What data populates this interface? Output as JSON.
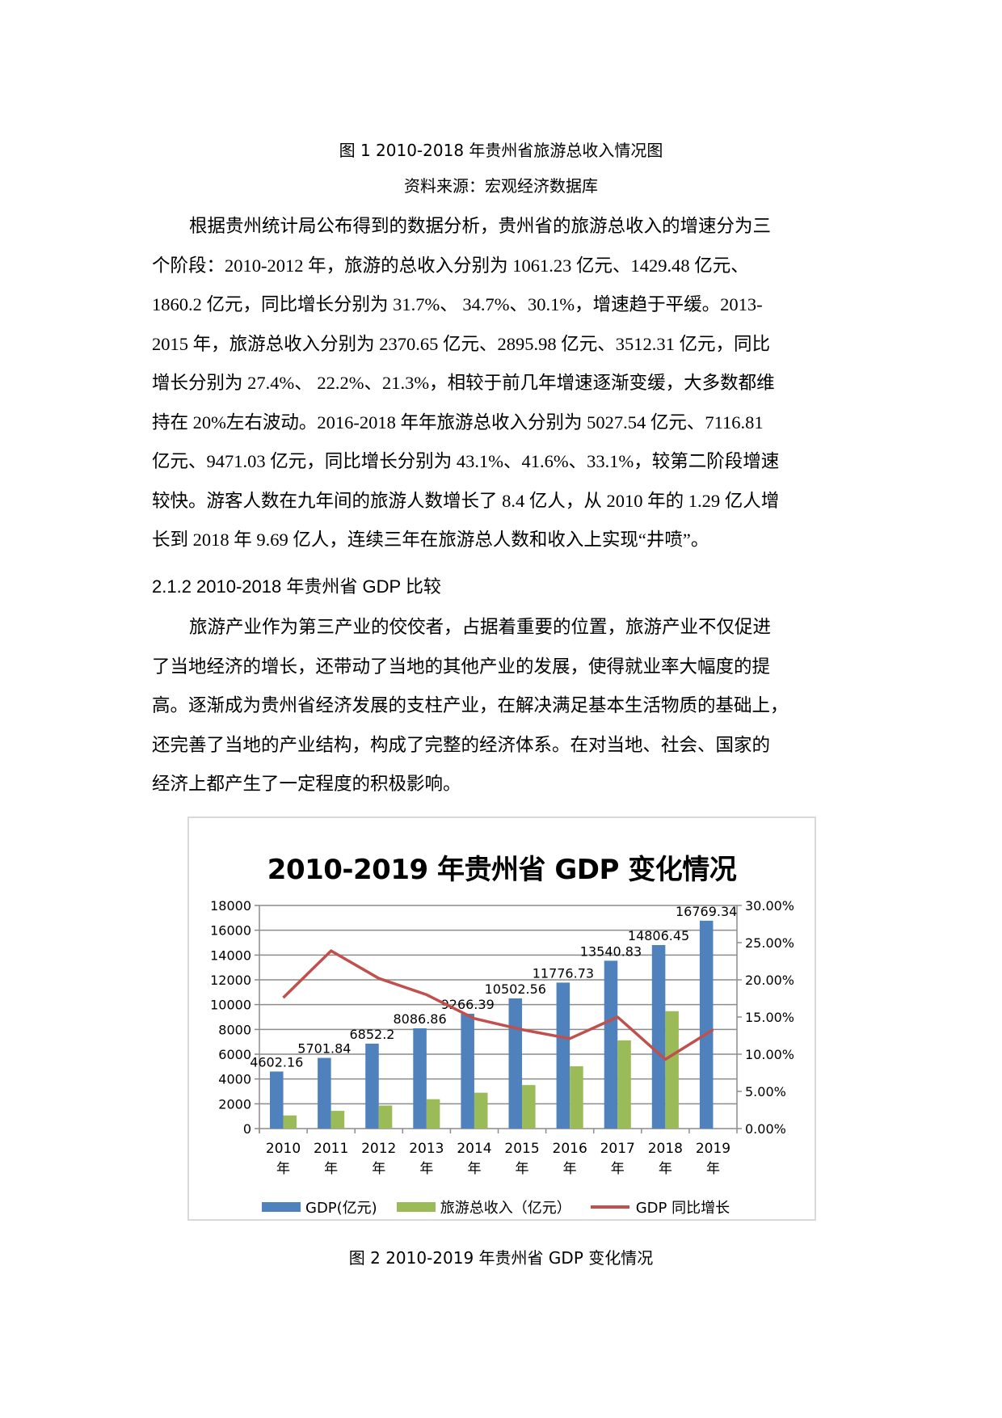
{
  "figure1": {
    "caption": "图 1 2010-2018 年贵州省旅游总收入情况图",
    "source": "资料来源：宏观经济数据库"
  },
  "paragraph1": {
    "lines": [
      "根据贵州统计局公布得到的数据分析，贵州省的旅游总收入的增速分为三",
      "个阶段：2010-2012 年，旅游的总收入分别为 1061.23 亿元、1429.48 亿元、",
      "1860.2 亿元，同比增长分别为 31.7%、 34.7%、30.1%，增速趋于平缓。2013-",
      "2015 年，旅游总收入分别为 2370.65 亿元、2895.98 亿元、3512.31 亿元，同比",
      "增长分别为 27.4%、 22.2%、21.3%，相较于前几年增速逐渐变缓，大多数都维",
      "持在 20%左右波动。2016-2018 年年旅游总收入分别为 5027.54 亿元、7116.81",
      "亿元、9471.03 亿元，同比增长分别为 43.1%、41.6%、33.1%，较第二阶段增速",
      "较快。游客人数在九年间的旅游人数增长了 8.4 亿人，从 2010 年的 1.29 亿人增",
      "长到 2018 年 9.69 亿人，连续三年在旅游总人数和收入上实现“井喷”。"
    ]
  },
  "section_heading": "2.1.2  2010-2018 年贵州省 GDP 比较",
  "paragraph2": {
    "lines": [
      "旅游产业作为第三产业的佼佼者，占据着重要的位置，旅游产业不仅促进",
      "了当地经济的增长，还带动了当地的其他产业的发展，使得就业率大幅度的提",
      "高。逐渐成为贵州省经济发展的支柱产业，在解决满足基本生活物质的基础上，",
      "还完善了当地的产业结构，构成了完整的经济体系。在对当地、社会、国家的",
      "经济上都产生了一定程度的积极影响。"
    ]
  },
  "figure2": {
    "caption": "图 2 2010-2019 年贵州省 GDP 变化情况"
  },
  "colors": {
    "gdp_bar": "#4f81bd",
    "tourism_bar": "#9bbb59",
    "growth_line": "#c0504d",
    "grid": "#8c8c8c",
    "chart_border": "#d9d9d9"
  },
  "chart_data": {
    "type": "bar",
    "title": "2010-2019 年贵州省 GDP 变化情况",
    "categories": [
      "2010 年",
      "2011 年",
      "2012 年",
      "2013 年",
      "2014 年",
      "2015 年",
      "2016 年",
      "2017 年",
      "2018 年",
      "2019 年"
    ],
    "category_years": [
      "2010",
      "2011",
      "2012",
      "2013",
      "2014",
      "2015",
      "2016",
      "2017",
      "2018",
      "2019"
    ],
    "category_suffix": "年",
    "series": [
      {
        "name": "GDP(亿元)",
        "type": "bar",
        "axis": "left",
        "values": [
          4602.16,
          5701.84,
          6852.2,
          8086.86,
          9266.39,
          10502.56,
          11776.73,
          13540.83,
          14806.45,
          16769.34
        ],
        "labels": [
          "4602.16",
          "5701.84",
          "6852.2",
          "8086.86",
          "9266.39",
          "10502.56",
          "11776.73",
          "13540.83",
          "14806.45",
          "16769.34"
        ]
      },
      {
        "name": "旅游总收入（亿元）",
        "type": "bar",
        "axis": "left",
        "values": [
          1061.23,
          1429.48,
          1860.2,
          2370.65,
          2895.98,
          3512.31,
          5027.54,
          7116.81,
          9471.03,
          null
        ]
      },
      {
        "name": "GDP 同比增长",
        "type": "line",
        "axis": "right",
        "values": [
          0.176,
          0.239,
          0.202,
          0.18,
          0.148,
          0.133,
          0.121,
          0.15,
          0.093,
          0.133
        ]
      }
    ],
    "left_axis": {
      "ylim": [
        0,
        18000
      ],
      "ticks": [
        "0",
        "2000",
        "4000",
        "6000",
        "8000",
        "10000",
        "12000",
        "14000",
        "16000",
        "18000"
      ]
    },
    "right_axis": {
      "ylim": [
        0,
        0.3
      ],
      "ticks": [
        "0.00%",
        "5.00%",
        "10.00%",
        "15.00%",
        "20.00%",
        "25.00%",
        "30.00%"
      ]
    },
    "xlabel": "",
    "ylabel": "",
    "grid": true,
    "legend_position": "bottom",
    "legend": [
      "GDP(亿元)",
      "旅游总收入（亿元）",
      "GDP 同比增长"
    ]
  }
}
